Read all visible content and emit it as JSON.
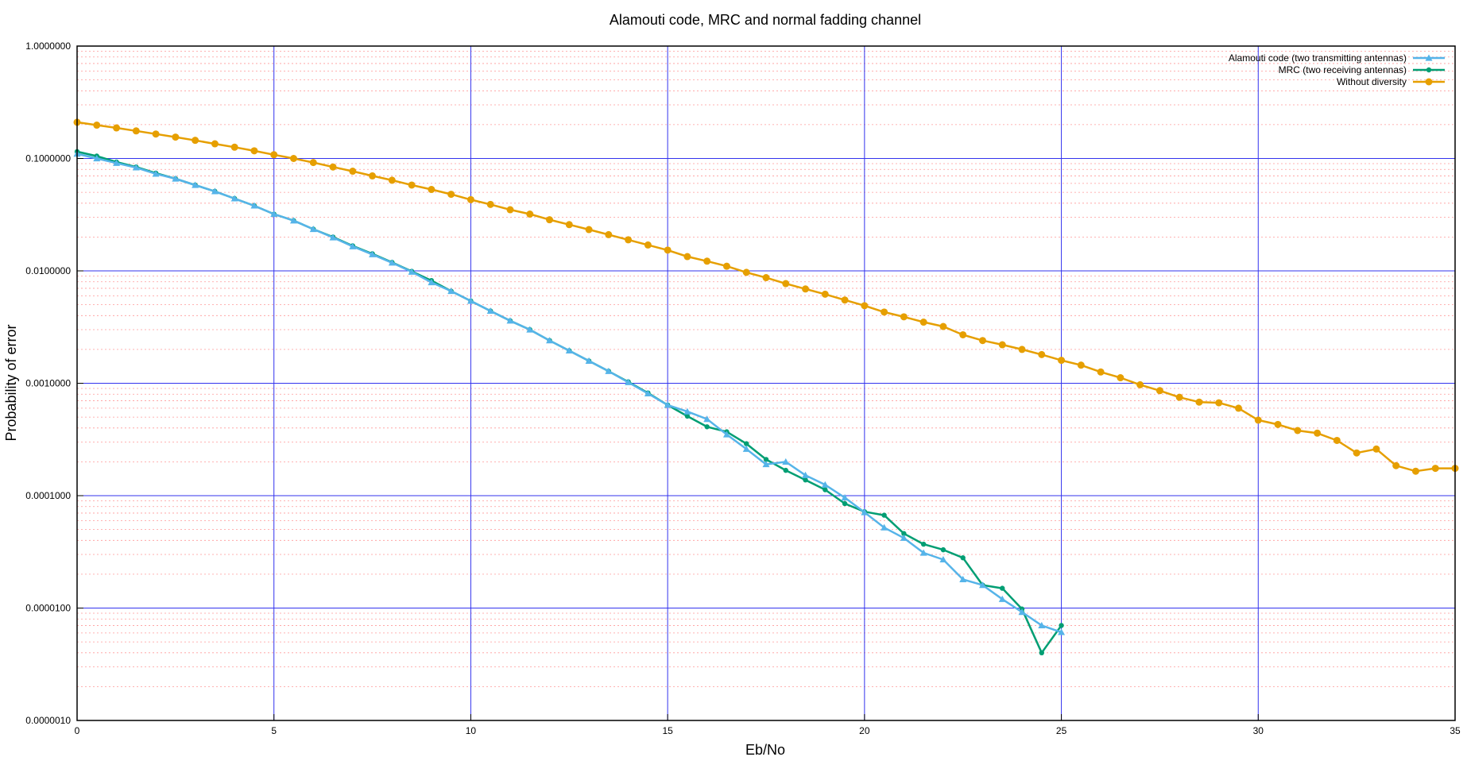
{
  "chart_data": {
    "type": "line",
    "title": "Alamouti code, MRC and normal fadding channel",
    "xlabel": "Eb/No",
    "ylabel": "Probability of error",
    "xlim": [
      0,
      35
    ],
    "ylim": [
      1e-06,
      1
    ],
    "yscale": "log",
    "grid": true,
    "legend_position": "top-right",
    "x_ticks": [
      "0",
      "5",
      "10",
      "15",
      "20",
      "25",
      "30",
      "35"
    ],
    "y_ticks": [
      "0.0000010",
      "0.0000100",
      "0.0001000",
      "0.0010000",
      "0.0100000",
      "0.1000000",
      "1.0000000"
    ],
    "series": [
      {
        "name": "Alamouti code (two transmitting antennas)",
        "color": "#56b4e9",
        "marker": "triangle",
        "x": [
          0,
          0.5,
          1,
          1.5,
          2,
          2.5,
          3,
          3.5,
          4,
          4.5,
          5,
          5.5,
          6,
          6.5,
          7,
          7.5,
          8,
          8.5,
          9,
          9.5,
          10,
          10.5,
          11,
          11.5,
          12,
          12.5,
          13,
          13.5,
          14,
          14.5,
          15,
          15.5,
          16,
          16.5,
          17,
          17.5,
          18,
          18.5,
          19,
          19.5,
          20,
          20.5,
          21,
          21.5,
          22,
          22.5,
          23,
          23.5,
          24,
          24.5,
          25
        ],
        "y": [
          0.11,
          0.1,
          0.091,
          0.083,
          0.073,
          0.066,
          0.058,
          0.051,
          0.044,
          0.038,
          0.032,
          0.028,
          0.0235,
          0.0198,
          0.0165,
          0.014,
          0.0118,
          0.0098,
          0.0079,
          0.0066,
          0.0054,
          0.0044,
          0.0036,
          0.003,
          0.0024,
          0.00195,
          0.00158,
          0.00128,
          0.00102,
          0.00081,
          0.00064,
          0.00056,
          0.00048,
          0.00035,
          0.00026,
          0.00019,
          0.0002,
          0.000152,
          0.000125,
          9.6e-05,
          7.1e-05,
          5.2e-05,
          4.2e-05,
          3.1e-05,
          2.7e-05,
          1.8e-05,
          1.6e-05,
          1.2e-05,
          9.2e-06,
          7e-06,
          6.1e-06
        ]
      },
      {
        "name": "MRC (two receiving antennas)",
        "color": "#009e73",
        "marker": "circle",
        "x": [
          0,
          0.5,
          1,
          1.5,
          2,
          2.5,
          3,
          3.5,
          4,
          4.5,
          5,
          5.5,
          6,
          6.5,
          7,
          7.5,
          8,
          8.5,
          9,
          9.5,
          10,
          10.5,
          11,
          11.5,
          12,
          12.5,
          13,
          13.5,
          14,
          14.5,
          15,
          15.5,
          16,
          16.5,
          17,
          17.5,
          18,
          18.5,
          19,
          19.5,
          20,
          20.5,
          21,
          21.5,
          22,
          22.5,
          23,
          23.5,
          24,
          24.5,
          25
        ],
        "y": [
          0.115,
          0.105,
          0.093,
          0.084,
          0.074,
          0.066,
          0.058,
          0.051,
          0.044,
          0.038,
          0.032,
          0.028,
          0.0235,
          0.02,
          0.0167,
          0.0142,
          0.0119,
          0.0099,
          0.0082,
          0.0066,
          0.0054,
          0.0044,
          0.0036,
          0.003,
          0.0024,
          0.00195,
          0.00158,
          0.00128,
          0.00103,
          0.00082,
          0.00064,
          0.00051,
          0.00041,
          0.00037,
          0.00029,
          0.00021,
          0.000168,
          0.000138,
          0.000113,
          8.5e-05,
          7.2e-05,
          6.7e-05,
          4.6e-05,
          3.7e-05,
          3.3e-05,
          2.8e-05,
          1.6e-05,
          1.5e-05,
          9.8e-06,
          4e-06,
          7e-06
        ]
      },
      {
        "name": "Without diversity",
        "color": "#e69f00",
        "marker": "circle",
        "x": [
          0,
          0.5,
          1,
          1.5,
          2,
          2.5,
          3,
          3.5,
          4,
          4.5,
          5,
          5.5,
          6,
          6.5,
          7,
          7.5,
          8,
          8.5,
          9,
          9.5,
          10,
          10.5,
          11,
          11.5,
          12,
          12.5,
          13,
          13.5,
          14,
          14.5,
          15,
          15.5,
          16,
          16.5,
          17,
          17.5,
          18,
          18.5,
          19,
          19.5,
          20,
          20.5,
          21,
          21.5,
          22,
          22.5,
          23,
          23.5,
          24,
          24.5,
          25,
          25.5,
          26,
          26.5,
          27,
          27.5,
          28,
          28.5,
          29,
          29.5,
          30,
          30.5,
          31,
          31.5,
          32,
          32.5,
          33,
          33.5,
          34,
          34.5,
          35
        ],
        "y": [
          0.21,
          0.198,
          0.187,
          0.176,
          0.165,
          0.155,
          0.145,
          0.135,
          0.126,
          0.117,
          0.108,
          0.1,
          0.092,
          0.084,
          0.077,
          0.07,
          0.064,
          0.058,
          0.053,
          0.048,
          0.043,
          0.039,
          0.035,
          0.032,
          0.0285,
          0.0258,
          0.0233,
          0.021,
          0.0189,
          0.017,
          0.0153,
          0.0134,
          0.0122,
          0.011,
          0.0097,
          0.0087,
          0.0077,
          0.0069,
          0.0062,
          0.0055,
          0.0049,
          0.0043,
          0.0039,
          0.0035,
          0.0032,
          0.0027,
          0.0024,
          0.0022,
          0.002,
          0.0018,
          0.0016,
          0.00145,
          0.00126,
          0.00112,
          0.00097,
          0.00086,
          0.00075,
          0.00068,
          0.00067,
          0.0006,
          0.00047,
          0.00043,
          0.00038,
          0.00036,
          0.00031,
          0.00024,
          0.00026,
          0.000185,
          0.000165,
          0.000175,
          0.000175
        ]
      }
    ]
  }
}
